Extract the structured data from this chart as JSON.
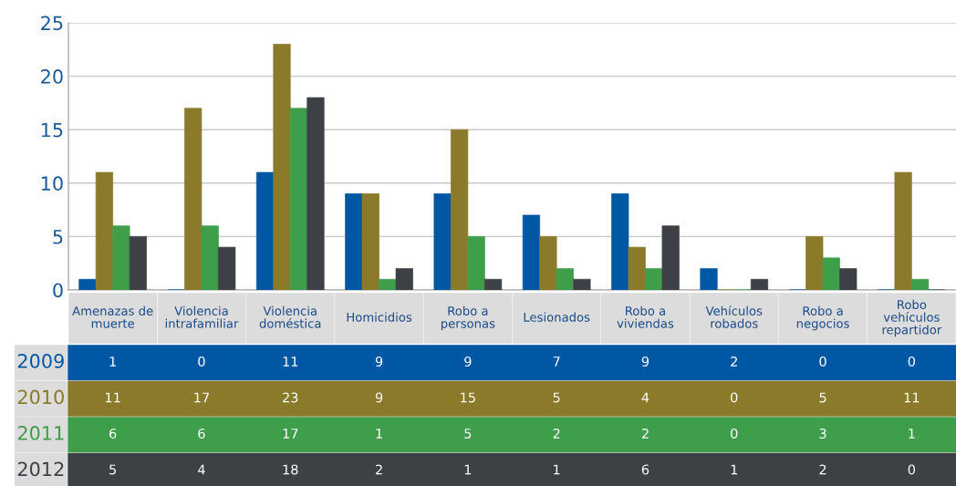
{
  "chart_data": {
    "type": "bar",
    "categories": [
      "Amenazas de muerte",
      "Violencia intrafamiliar",
      "Violencia doméstica",
      "Homicidios",
      "Robo a personas",
      "Lesionados",
      "Robo a viviendas",
      "Vehículos robados",
      "Robo a negocios",
      "Robo vehículos repartidor"
    ],
    "series": [
      {
        "name": "2009",
        "color": "#0057a3",
        "values": [
          1,
          0,
          11,
          9,
          9,
          7,
          9,
          2,
          0,
          0
        ]
      },
      {
        "name": "2010",
        "color": "#8c7a2b",
        "values": [
          11,
          17,
          23,
          9,
          15,
          5,
          4,
          0,
          5,
          11
        ]
      },
      {
        "name": "2011",
        "color": "#3f9e4a",
        "values": [
          6,
          6,
          17,
          1,
          5,
          2,
          2,
          0,
          3,
          1
        ]
      },
      {
        "name": "2012",
        "color": "#3d4045",
        "values": [
          5,
          4,
          18,
          2,
          1,
          1,
          6,
          1,
          2,
          0
        ]
      }
    ],
    "ylim": [
      0,
      25
    ],
    "yticks": [
      0,
      5,
      10,
      15,
      20,
      25
    ],
    "grid": "y",
    "legend": false,
    "data_labels": true
  }
}
